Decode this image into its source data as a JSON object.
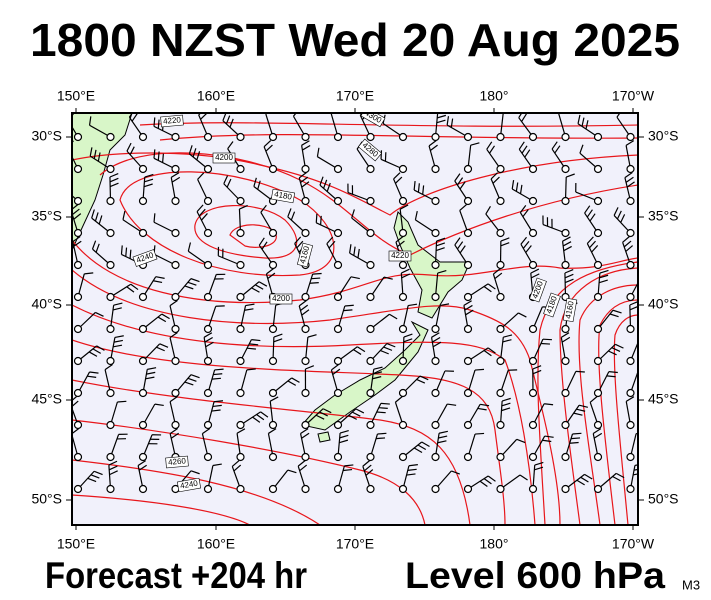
{
  "header": {
    "title": "1800 NZST Wed 20 Aug 2025"
  },
  "map": {
    "lon_labels": [
      "150°E",
      "160°E",
      "170°E",
      "180°",
      "170°W"
    ],
    "lat_labels": [
      "30°S",
      "35°S",
      "40°S",
      "45°S",
      "50°S"
    ],
    "contour_labels": [
      "4220",
      "4200",
      "4180",
      "4160",
      "4220",
      "4200",
      "4240",
      "4260",
      "4240",
      "4300",
      "4280",
      "4200",
      "4180",
      "4160"
    ]
  },
  "footer": {
    "forecast": "Forecast +204 hr",
    "level": "Level 600 hPa",
    "code": "M3"
  }
}
